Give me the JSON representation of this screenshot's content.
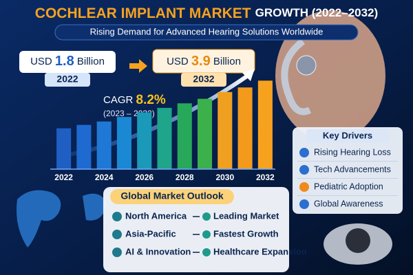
{
  "header": {
    "title_highlight": "COCHLEAR IMPLANT MARKET",
    "title_rest": "GROWTH (2022–2032)",
    "subtitle": "Rising Demand for Advanced Hearing Solutions Worldwide"
  },
  "stats": {
    "start": {
      "currency": "USD",
      "amount": "1.8",
      "unit": "Billion",
      "year": "2022"
    },
    "end": {
      "currency": "USD",
      "amount": "3.9",
      "unit": "Billion",
      "year": "2032"
    },
    "cagr": {
      "label": "CAGR",
      "value": "8.2%",
      "period": "(2023 – 2032)"
    }
  },
  "chart_data": {
    "type": "bar",
    "categories": [
      "2022",
      null,
      "2024",
      null,
      "2026",
      null,
      "2028",
      null,
      "2030",
      null,
      "2032"
    ],
    "values": [
      1.8,
      1.95,
      2.1,
      2.3,
      2.5,
      2.7,
      2.9,
      3.1,
      3.4,
      3.6,
      3.9
    ],
    "colors": [
      "#1f5fc4",
      "#1f6ad0",
      "#1f78d6",
      "#1b88d4",
      "#1a9ab8",
      "#1ea58a",
      "#27a85a",
      "#3cb04a",
      "#f0a020",
      "#f39a1c",
      "#f7a21e"
    ]
  },
  "drivers": {
    "title": "Key Drivers",
    "items": [
      "Rising Hearing Loss",
      "Tech Advancements",
      "Pediatric Adoption",
      "Global Awareness"
    ]
  },
  "outlook": {
    "title": "Global Market Outlook",
    "rows": [
      [
        "North America",
        "Leading Market"
      ],
      [
        "Asia-Pacific",
        "Fastest Growth"
      ],
      [
        "AI & Innovation",
        "Healthcare Expansion"
      ]
    ]
  }
}
